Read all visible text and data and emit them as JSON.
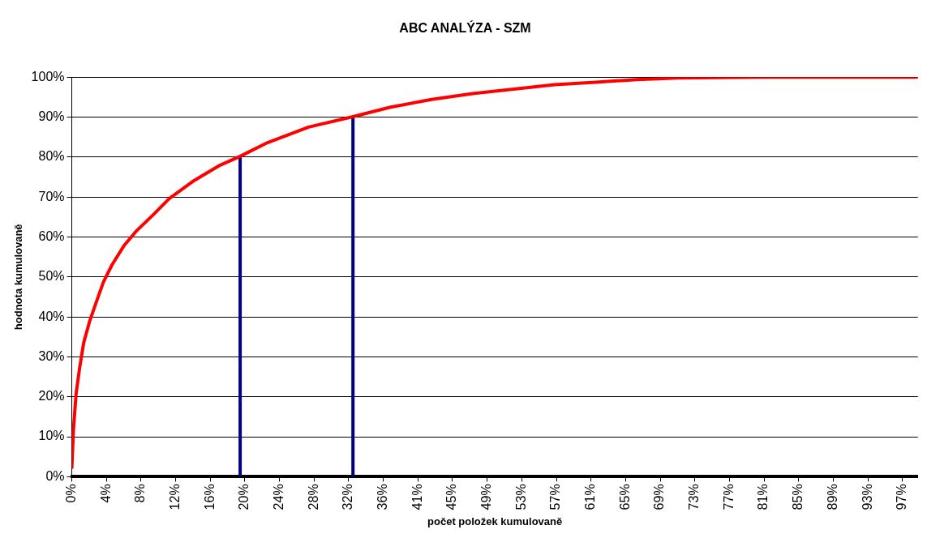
{
  "chart_data": {
    "type": "line",
    "title": "ABC ANALÝZA - SZM",
    "xlabel": "počet položek kumulovaně",
    "ylabel": "hodnota kumulovaně",
    "xlim": [
      0,
      99
    ],
    "ylim": [
      0,
      100
    ],
    "xticks": [
      {
        "value": 0,
        "label": "0%"
      },
      {
        "value": 4.05,
        "label": "4%"
      },
      {
        "value": 8.1,
        "label": "8%"
      },
      {
        "value": 12.15,
        "label": "12%"
      },
      {
        "value": 16.2,
        "label": "16%"
      },
      {
        "value": 20.25,
        "label": "20%"
      },
      {
        "value": 24.3,
        "label": "24%"
      },
      {
        "value": 28.35,
        "label": "28%"
      },
      {
        "value": 32.4,
        "label": "32%"
      },
      {
        "value": 36.45,
        "label": "36%"
      },
      {
        "value": 40.5,
        "label": "41%"
      },
      {
        "value": 44.55,
        "label": "45%"
      },
      {
        "value": 48.6,
        "label": "49%"
      },
      {
        "value": 52.65,
        "label": "53%"
      },
      {
        "value": 56.7,
        "label": "57%"
      },
      {
        "value": 60.75,
        "label": "61%"
      },
      {
        "value": 64.8,
        "label": "65%"
      },
      {
        "value": 68.85,
        "label": "69%"
      },
      {
        "value": 72.9,
        "label": "73%"
      },
      {
        "value": 76.95,
        "label": "77%"
      },
      {
        "value": 81,
        "label": "81%"
      },
      {
        "value": 85.05,
        "label": "85%"
      },
      {
        "value": 89.1,
        "label": "89%"
      },
      {
        "value": 93.15,
        "label": "93%"
      },
      {
        "value": 97.2,
        "label": "97%"
      }
    ],
    "yticks": [
      {
        "value": 0,
        "label": "0%"
      },
      {
        "value": 10,
        "label": "10%"
      },
      {
        "value": 20,
        "label": "20%"
      },
      {
        "value": 30,
        "label": "30%"
      },
      {
        "value": 40,
        "label": "40%"
      },
      {
        "value": 50,
        "label": "50%"
      },
      {
        "value": 60,
        "label": "60%"
      },
      {
        "value": 70,
        "label": "70%"
      },
      {
        "value": 80,
        "label": "80%"
      },
      {
        "value": 90,
        "label": "90%"
      },
      {
        "value": 100,
        "label": "100%"
      }
    ],
    "grid": "y",
    "legend": false,
    "marker": "none",
    "series": [
      {
        "color": "#ff0000",
        "x": [
          0,
          0.2,
          0.5,
          0.9,
          1.4,
          2.1,
          2.8,
          3.7,
          4.7,
          6.1,
          7.6,
          9.5,
          11.4,
          14.3,
          17.2,
          19.7,
          22.9,
          27.7,
          32.9,
          37.3,
          42.1,
          46.9,
          51.7,
          56.5,
          61.3,
          66.1,
          70.9,
          80.4,
          99
        ],
        "values": [
          2,
          12,
          20.7,
          27,
          33.6,
          39,
          43.3,
          48.7,
          53,
          57.8,
          61.6,
          65.5,
          69.6,
          74.1,
          77.8,
          80.2,
          83.6,
          87.5,
          90.1,
          92.5,
          94.4,
          95.9,
          97,
          98.1,
          98.7,
          99.4,
          99.8,
          100,
          100
        ]
      },
      {
        "color": "#000080",
        "x": [
          19.7,
          19.7
        ],
        "values": [
          0,
          80.2
        ]
      },
      {
        "color": "#000080",
        "x": [
          32.9,
          32.9
        ],
        "values": [
          0,
          90.1
        ]
      }
    ]
  }
}
